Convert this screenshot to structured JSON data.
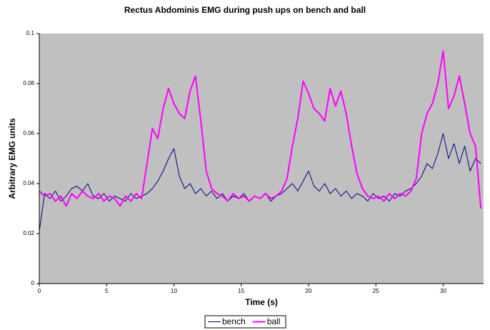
{
  "chart_data": {
    "type": "line",
    "title": "Rectus Abdominis EMG during push ups on bench and ball",
    "x_label": "Time (s)",
    "y_label": "Arbitrary EMG units",
    "x": [
      0,
      0.4,
      0.8,
      1.2,
      1.6,
      2.0,
      2.4,
      2.8,
      3.2,
      3.6,
      4.0,
      4.4,
      4.8,
      5.2,
      5.6,
      6.0,
      6.4,
      6.8,
      7.2,
      7.6,
      8.0,
      8.4,
      8.8,
      9.2,
      9.6,
      10.0,
      10.4,
      10.8,
      11.2,
      11.6,
      12.0,
      12.4,
      12.8,
      13.2,
      13.6,
      14.0,
      14.4,
      14.8,
      15.2,
      15.6,
      16.0,
      16.4,
      16.8,
      17.2,
      17.6,
      18.0,
      18.4,
      18.8,
      19.2,
      19.6,
      20.0,
      20.4,
      20.8,
      21.2,
      21.6,
      22.0,
      22.4,
      22.8,
      23.2,
      23.6,
      24.0,
      24.4,
      24.8,
      25.2,
      25.6,
      26.0,
      26.4,
      26.8,
      27.2,
      27.6,
      28.0,
      28.4,
      28.8,
      29.2,
      29.6,
      30.0,
      30.4,
      30.8,
      31.2,
      31.6,
      32.0,
      32.4,
      32.8
    ],
    "series": [
      {
        "name": "bench",
        "color": "#000080",
        "values": [
          0.021,
          0.036,
          0.034,
          0.037,
          0.033,
          0.035,
          0.038,
          0.039,
          0.037,
          0.04,
          0.035,
          0.034,
          0.036,
          0.033,
          0.035,
          0.034,
          0.033,
          0.036,
          0.034,
          0.035,
          0.036,
          0.038,
          0.041,
          0.045,
          0.05,
          0.054,
          0.043,
          0.038,
          0.04,
          0.036,
          0.038,
          0.035,
          0.037,
          0.034,
          0.036,
          0.033,
          0.035,
          0.034,
          0.036,
          0.033,
          0.035,
          0.034,
          0.036,
          0.033,
          0.035,
          0.036,
          0.038,
          0.04,
          0.037,
          0.041,
          0.045,
          0.039,
          0.037,
          0.04,
          0.036,
          0.038,
          0.035,
          0.037,
          0.034,
          0.036,
          0.035,
          0.033,
          0.036,
          0.034,
          0.035,
          0.033,
          0.036,
          0.035,
          0.037,
          0.038,
          0.04,
          0.043,
          0.048,
          0.046,
          0.052,
          0.06,
          0.05,
          0.056,
          0.048,
          0.055,
          0.045,
          0.05,
          0.048
        ]
      },
      {
        "name": "ball",
        "color": "#ff00ff",
        "values": [
          0.037,
          0.035,
          0.036,
          0.033,
          0.035,
          0.031,
          0.036,
          0.034,
          0.037,
          0.035,
          0.034,
          0.036,
          0.033,
          0.035,
          0.034,
          0.031,
          0.035,
          0.033,
          0.036,
          0.034,
          0.048,
          0.062,
          0.058,
          0.07,
          0.078,
          0.072,
          0.068,
          0.066,
          0.077,
          0.083,
          0.065,
          0.045,
          0.038,
          0.036,
          0.035,
          0.033,
          0.036,
          0.034,
          0.035,
          0.033,
          0.035,
          0.034,
          0.036,
          0.034,
          0.035,
          0.037,
          0.042,
          0.055,
          0.066,
          0.081,
          0.076,
          0.07,
          0.068,
          0.065,
          0.078,
          0.071,
          0.077,
          0.068,
          0.055,
          0.044,
          0.038,
          0.035,
          0.034,
          0.035,
          0.033,
          0.036,
          0.034,
          0.036,
          0.035,
          0.037,
          0.042,
          0.06,
          0.068,
          0.072,
          0.08,
          0.093,
          0.07,
          0.075,
          0.083,
          0.072,
          0.06,
          0.055,
          0.03
        ]
      }
    ],
    "xlim": [
      0,
      33
    ],
    "xticks": [
      0,
      5,
      10,
      15,
      20,
      25,
      30
    ],
    "ylim": [
      0,
      0.1
    ],
    "yticks": [
      0,
      0.02,
      0.04,
      0.06,
      0.08,
      0.1
    ],
    "grid": false,
    "legend": "bottom",
    "plot_background": "#c0c0c0"
  }
}
